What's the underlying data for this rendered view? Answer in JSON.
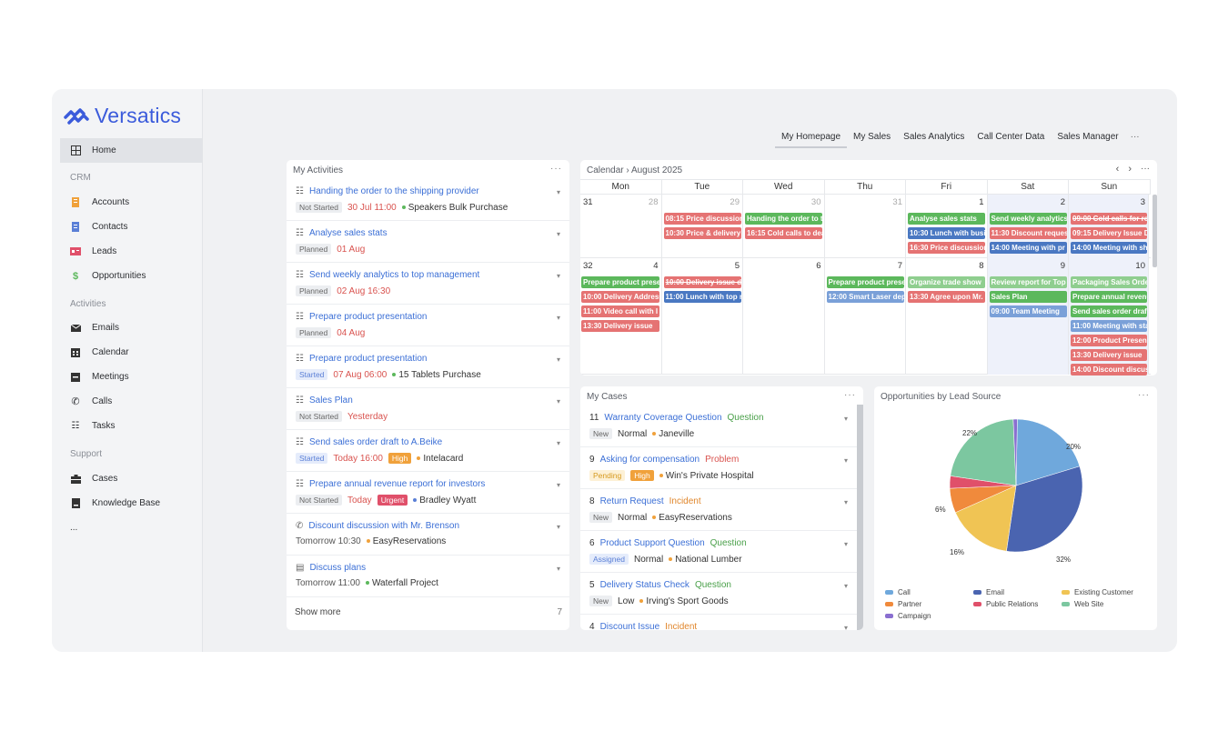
{
  "brand": {
    "name": "Versatics"
  },
  "sidebar": {
    "home": "Home",
    "sections": {
      "crm": "CRM",
      "activities": "Activities",
      "support": "Support"
    },
    "crm_items": [
      {
        "label": "Accounts",
        "icon": "accounts-icon",
        "color": "#f0a13b"
      },
      {
        "label": "Contacts",
        "icon": "contacts-icon",
        "color": "#5a7fd6"
      },
      {
        "label": "Leads",
        "icon": "leads-icon",
        "color": "#d9534f"
      },
      {
        "label": "Opportunities",
        "icon": "dollar-icon",
        "color": "#5cb85c"
      }
    ],
    "activity_items": [
      {
        "label": "Emails",
        "icon": "email-icon"
      },
      {
        "label": "Calendar",
        "icon": "calendar-icon"
      },
      {
        "label": "Meetings",
        "icon": "meetings-icon"
      },
      {
        "label": "Calls",
        "icon": "phone-icon"
      },
      {
        "label": "Tasks",
        "icon": "tasks-icon"
      }
    ],
    "support_items": [
      {
        "label": "Cases",
        "icon": "cases-icon"
      },
      {
        "label": "Knowledge Base",
        "icon": "book-icon"
      }
    ],
    "more": "..."
  },
  "tabs": [
    "My Homepage",
    "My Sales",
    "Sales Analytics",
    "Call Center Data",
    "Sales Manager"
  ],
  "tabs_more": "···",
  "activities": {
    "title": "My Activities",
    "menu": "···",
    "items": [
      {
        "title": "Handing the order to the shipping provider",
        "status": "Not Started",
        "date": "30 Jul 11:00",
        "related": "Speakers Bulk Purchase"
      },
      {
        "title": "Analyse sales stats",
        "status": "Planned",
        "date": "01 Aug",
        "related": ""
      },
      {
        "title": "Send weekly analytics to top management",
        "status": "Planned",
        "date": "02 Aug 16:30",
        "related": ""
      },
      {
        "title": "Prepare product presentation",
        "status": "Planned",
        "date": "04 Aug",
        "related": ""
      },
      {
        "title": "Prepare product presentation",
        "status": "Started",
        "date": "07 Aug 06:00",
        "related": "15 Tablets Purchase"
      },
      {
        "title": "Sales Plan",
        "status": "Not Started",
        "date": "Yesterday",
        "related": ""
      },
      {
        "title": "Send sales order draft to A.Beike",
        "status": "Started",
        "date": "Today 16:00",
        "priority": "High",
        "related": "Intelacard"
      },
      {
        "title": "Prepare annual revenue report for investors",
        "status": "Not Started",
        "date": "Today",
        "priority": "Urgent",
        "related": "Bradley Wyatt"
      },
      {
        "title": "Discount discussion with Mr. Brenson",
        "date": "Tomorrow 10:30",
        "related": "EasyReservations"
      },
      {
        "title": "Discuss plans",
        "date": "Tomorrow 11:00",
        "related": "Waterfall Project"
      }
    ],
    "show_more": "Show more",
    "show_more_count": "7"
  },
  "calendar": {
    "title": "Calendar",
    "breadcrumb_sep": "›",
    "month": "August 2025",
    "prev": "‹",
    "next": "›",
    "menu": "···",
    "days": [
      "Mon",
      "Tue",
      "Wed",
      "Thu",
      "Fri",
      "Sat",
      "Sun"
    ],
    "week1": {
      "week_no": "31",
      "dates": [
        "28",
        "29",
        "30",
        "31",
        "1",
        "2",
        "3"
      ],
      "events": {
        "tue": [
          "08:15 Price discussion",
          "10:30 Price & delivery"
        ],
        "wed": [
          "Handing the order to the",
          "16:15 Cold calls to dea"
        ],
        "fri": [
          "Analyse sales stats",
          "10:30 Lunch with business",
          "16:30 Price discussion"
        ],
        "sat": [
          "Send weekly analytics",
          "11:30 Discount request",
          "14:00 Meeting with pr"
        ],
        "sun": [
          "09:00 Cold calls for re",
          "09:15 Delivery Issue D",
          "14:00 Meeting with sh"
        ]
      }
    },
    "week2": {
      "week_no": "32",
      "dates": [
        "4",
        "5",
        "6",
        "7",
        "8",
        "9",
        "10"
      ],
      "events": {
        "mon": [
          "Prepare product prese",
          "10:00 Delivery Address",
          "11:00 Video call with I",
          "13:30 Delivery issue"
        ],
        "tue": [
          "10:00 Delivery issue d",
          "11:00 Lunch with top m"
        ],
        "thu": [
          "Prepare product prese",
          "12:00 Smart Laser dep"
        ],
        "fri": [
          "Organize trade show",
          "13:30 Agree upon Mr."
        ],
        "sat": [
          "Review report for Top",
          "Sales Plan",
          "09:00 Team Meeting"
        ],
        "sun": [
          "Packaging Sales Order",
          "Prepare annual revenue",
          "Send sales order draft",
          "11:00 Meeting with sta",
          "12:00 Product Present",
          "13:30 Delivery issue",
          "14:00 Discount discus"
        ]
      }
    }
  },
  "cases": {
    "title": "My Cases",
    "menu": "···",
    "items": [
      {
        "num": "11",
        "title": "Warranty Coverage Question",
        "type": "Question",
        "status": "New",
        "priority": "Normal",
        "account": "Janeville"
      },
      {
        "num": "9",
        "title": "Asking for compensation",
        "type": "Problem",
        "status": "Pending",
        "priority": "High",
        "account": "Win's Private Hospital"
      },
      {
        "num": "8",
        "title": "Return Request",
        "type": "Incident",
        "status": "New",
        "priority": "Normal",
        "account": "EasyReservations"
      },
      {
        "num": "6",
        "title": "Product Support Question",
        "type": "Question",
        "status": "Assigned",
        "priority": "Normal",
        "account": "National Lumber"
      },
      {
        "num": "5",
        "title": "Delivery Status Check",
        "type": "Question",
        "status": "New",
        "priority": "Low",
        "account": "Irving's Sport Goods"
      },
      {
        "num": "4",
        "title": "Discount Issue",
        "type": "Incident",
        "status": "",
        "priority": "",
        "account": ""
      }
    ]
  },
  "opportunities": {
    "title": "Opportunities by Lead Source",
    "menu": "···",
    "chart_data": {
      "type": "pie",
      "slices": [
        {
          "name": "Call",
          "value": 20,
          "color": "#6fa8dc"
        },
        {
          "name": "Email",
          "value": 32,
          "color": "#4a64b0"
        },
        {
          "name": "Existing Customer",
          "value": 16,
          "color": "#f0c454"
        },
        {
          "name": "Partner",
          "value": 6,
          "color": "#f08a3c"
        },
        {
          "name": "Public Relations",
          "value": 3,
          "color": "#e0506a"
        },
        {
          "name": "Web Site",
          "value": 22,
          "color": "#7cc7a0"
        },
        {
          "name": "Campaign",
          "value": 1,
          "color": "#8a6fd0"
        }
      ],
      "labels": [
        "22%",
        "20%",
        "6%",
        "16%",
        "32%"
      ]
    }
  }
}
